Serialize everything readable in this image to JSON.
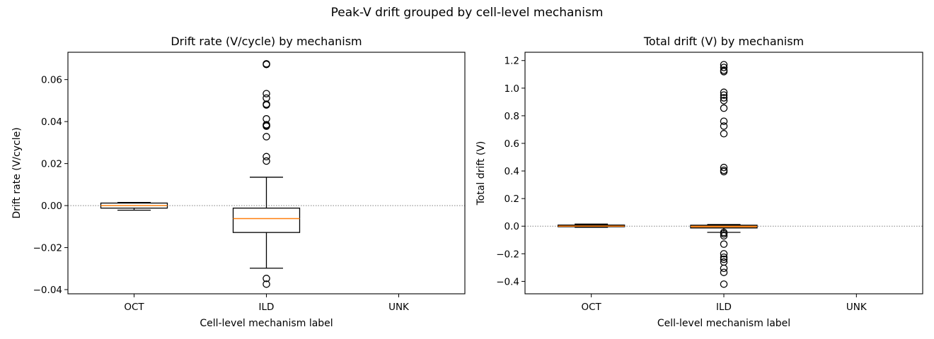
{
  "figure": {
    "title": "Peak-V drift grouped by cell-level mechanism"
  },
  "colors": {
    "median": "#ff7f0e",
    "box_edge": "#000000",
    "zero_line": "#808080",
    "filled_box": "#d98c3a"
  },
  "chart_data": [
    {
      "type": "box",
      "title": "Drift rate (V/cycle) by mechanism",
      "xlabel": "Cell-level mechanism label",
      "ylabel": "Drift rate (V/cycle)",
      "categories": [
        "OCT",
        "ILD",
        "UNK"
      ],
      "ylim": [
        -0.042,
        0.073
      ],
      "yticks": [
        -0.04,
        -0.02,
        0.0,
        0.02,
        0.04,
        0.06
      ],
      "ytick_labels": [
        "−0.04",
        "−0.02",
        "0.00",
        "0.02",
        "0.04",
        "0.06"
      ],
      "zero_line": true,
      "boxes": [
        {
          "category": "OCT",
          "whislo": -0.0022,
          "q1": -0.0012,
          "med": 0.0,
          "q3": 0.0012,
          "whishi": 0.0015,
          "fliers": []
        },
        {
          "category": "ILD",
          "whislo": -0.0298,
          "q1": -0.0128,
          "med": -0.0062,
          "q3": -0.0012,
          "whishi": 0.0135,
          "fliers": [
            0.0672,
            0.0675,
            0.0533,
            0.0512,
            0.0483,
            0.0479,
            0.0413,
            0.0385,
            0.0378,
            0.0382,
            0.0328,
            0.0233,
            0.0212,
            -0.0347,
            -0.0374
          ]
        },
        {
          "category": "UNK",
          "empty": true
        }
      ]
    },
    {
      "type": "box",
      "title": "Total drift (V) by mechanism",
      "xlabel": "Cell-level mechanism label",
      "ylabel": "Total drift (V)",
      "categories": [
        "OCT",
        "ILD",
        "UNK"
      ],
      "ylim": [
        -0.49,
        1.26
      ],
      "yticks": [
        -0.4,
        -0.2,
        0.0,
        0.2,
        0.4,
        0.6,
        0.8,
        1.0,
        1.2
      ],
      "ytick_labels": [
        "−0.4",
        "−0.2",
        "0.0",
        "0.2",
        "0.4",
        "0.6",
        "0.8",
        "1.0",
        "1.2"
      ],
      "zero_line": true,
      "boxes": [
        {
          "category": "OCT",
          "whislo": -0.008,
          "q1": -0.004,
          "med": 0.0,
          "q3": 0.008,
          "whishi": 0.015,
          "fliers": []
        },
        {
          "category": "ILD",
          "whislo": -0.045,
          "q1": -0.013,
          "med": -0.002,
          "q3": 0.007,
          "whishi": 0.012,
          "fliers": [
            1.17,
            1.15,
            1.13,
            1.12,
            0.97,
            0.95,
            0.93,
            0.91,
            0.855,
            0.76,
            0.725,
            0.67,
            0.425,
            0.405,
            0.395,
            -0.045,
            -0.055,
            -0.07,
            -0.13,
            -0.2,
            -0.225,
            -0.24,
            -0.26,
            -0.305,
            -0.335,
            -0.42
          ]
        },
        {
          "category": "UNK",
          "empty": true
        }
      ]
    }
  ]
}
